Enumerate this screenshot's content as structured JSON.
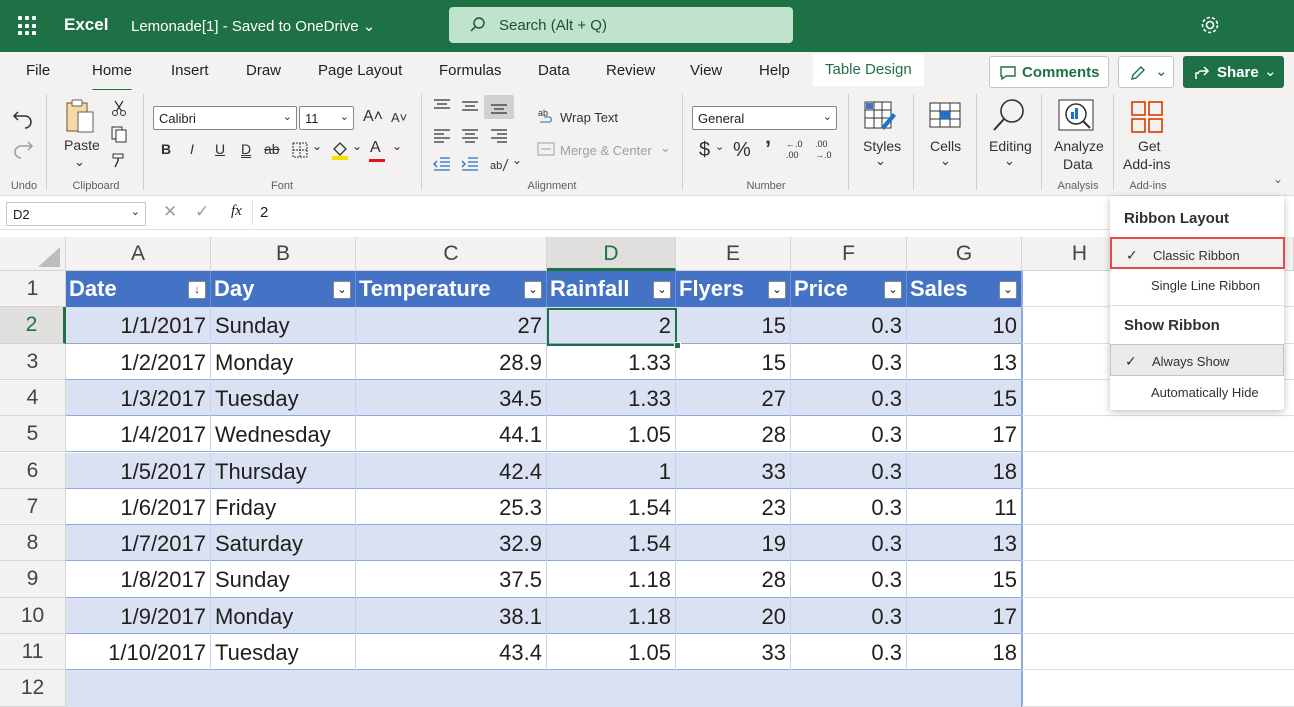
{
  "titlebar": {
    "app_name": "Excel",
    "doc_name": "Lemonade[1]  -  Saved to OneDrive ⌄",
    "search_placeholder": "Search (Alt + Q)"
  },
  "tabs": [
    "File",
    "Home",
    "Insert",
    "Draw",
    "Page Layout",
    "Formulas",
    "Data",
    "Review",
    "View",
    "Help",
    "Table Design"
  ],
  "header_buttons": {
    "comments": "Comments",
    "share": "Share"
  },
  "ribbon": {
    "undo_label": "Undo",
    "clipboard_label": "Clipboard",
    "paste_label": "Paste",
    "font_label": "Font",
    "font_name": "Calibri",
    "font_size": "11",
    "grow_font": "A˄",
    "shrink_font": "A˅",
    "bold": "B",
    "italic": "I",
    "underline": "U",
    "double_underline": "D",
    "strike": "ab",
    "alignment_label": "Alignment",
    "wrap_text": "Wrap Text",
    "merge_center": "Merge & Center",
    "number_label": "Number",
    "number_format": "General",
    "currency": "$",
    "percent": "%",
    "comma": "ʼ",
    "inc_decimal_top": "←.0",
    "inc_decimal_bottom": ".00",
    "dec_decimal_top": ".00",
    "dec_decimal_bottom": "→.0",
    "styles": "Styles",
    "cells": "Cells",
    "editing": "Editing",
    "analyze_line1": "Analyze",
    "analyze_line2": "Data",
    "analysis_label": "Analysis",
    "get_line1": "Get",
    "get_line2": "Add-ins",
    "addins_label": "Add-ins"
  },
  "formula_bar": {
    "name_box": "D2",
    "fx": "fx",
    "value": "2"
  },
  "columns": [
    "A",
    "B",
    "C",
    "D",
    "E",
    "F",
    "G",
    "H"
  ],
  "selected_column": "D",
  "rows": [
    "1",
    "2",
    "3",
    "4",
    "5",
    "6",
    "7",
    "8",
    "9",
    "10",
    "11",
    "12"
  ],
  "selected_row": "2",
  "table": {
    "headers": [
      "Date",
      "Day",
      "Temperature",
      "Rainfall",
      "Flyers",
      "Price",
      "Sales"
    ],
    "data": [
      [
        "1/1/2017",
        "Sunday",
        "27",
        "2",
        "15",
        "0.3",
        "10"
      ],
      [
        "1/2/2017",
        "Monday",
        "28.9",
        "1.33",
        "15",
        "0.3",
        "13"
      ],
      [
        "1/3/2017",
        "Tuesday",
        "34.5",
        "1.33",
        "27",
        "0.3",
        "15"
      ],
      [
        "1/4/2017",
        "Wednesday",
        "44.1",
        "1.05",
        "28",
        "0.3",
        "17"
      ],
      [
        "1/5/2017",
        "Thursday",
        "42.4",
        "1",
        "33",
        "0.3",
        "18"
      ],
      [
        "1/6/2017",
        "Friday",
        "25.3",
        "1.54",
        "23",
        "0.3",
        "11"
      ],
      [
        "1/7/2017",
        "Saturday",
        "32.9",
        "1.54",
        "19",
        "0.3",
        "13"
      ],
      [
        "1/8/2017",
        "Sunday",
        "37.5",
        "1.18",
        "28",
        "0.3",
        "15"
      ],
      [
        "1/9/2017",
        "Monday",
        "38.1",
        "1.18",
        "20",
        "0.3",
        "17"
      ],
      [
        "1/10/2017",
        "Tuesday",
        "43.4",
        "1.05",
        "33",
        "0.3",
        "18"
      ]
    ]
  },
  "menu": {
    "heading1": "Ribbon Layout",
    "item_classic": "Classic Ribbon",
    "item_single": "Single Line Ribbon",
    "heading2": "Show Ribbon",
    "item_always": "Always Show",
    "item_auto": "Automatically Hide",
    "check": "✓"
  },
  "colors": {
    "excel_green": "#1e7145",
    "table_header": "#4472c4",
    "band": "#d9e1f2",
    "highlight_red": "#e04b4b"
  }
}
